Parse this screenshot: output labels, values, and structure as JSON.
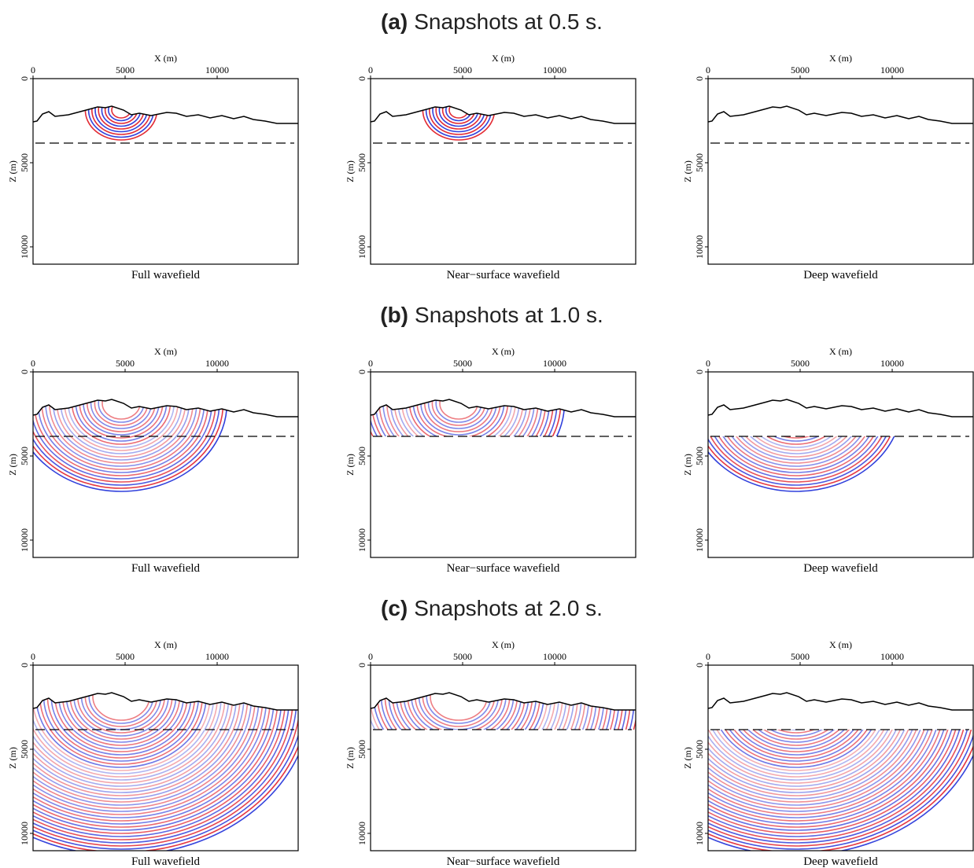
{
  "figure": {
    "axes": {
      "x_label": "X (m)",
      "z_label": "Z (m)",
      "xlim": [
        0,
        14400
      ],
      "xticks": [
        0,
        5000,
        10000
      ],
      "zlim": [
        0,
        11030
      ],
      "zticks": [
        0,
        5000,
        10000
      ]
    },
    "rows": [
      {
        "label": "(a)",
        "title": "Snapshots at 0.5 s.",
        "panels": [
          {
            "caption": "Full wavefield"
          },
          {
            "caption": "Near−surface wavefield"
          },
          {
            "caption": "Deep wavefield"
          }
        ]
      },
      {
        "label": "(b)",
        "title": "Snapshots at 1.0 s.",
        "panels": [
          {
            "caption": "Full wavefield"
          },
          {
            "caption": "Near−surface wavefield"
          },
          {
            "caption": "Deep wavefield"
          }
        ]
      },
      {
        "label": "(c)",
        "title": "Snapshots at 2.0 s.",
        "panels": [
          {
            "caption": "Full wavefield"
          },
          {
            "caption": "Near−surface wavefield"
          },
          {
            "caption": "Deep wavefield"
          }
        ]
      }
    ]
  }
}
